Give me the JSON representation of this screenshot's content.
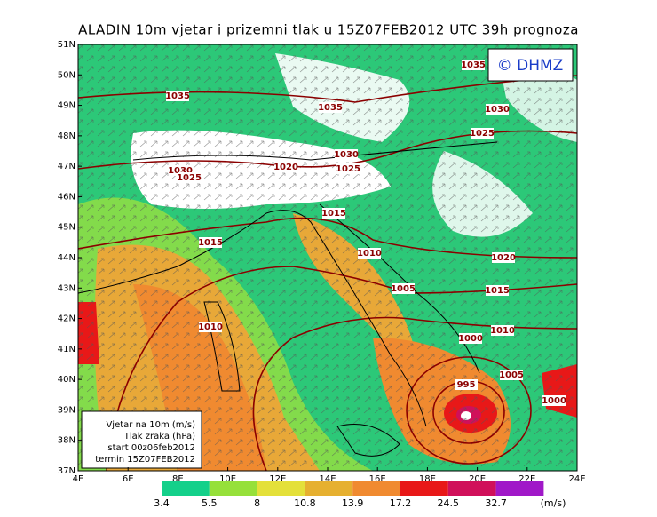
{
  "header": {
    "title": "ALADIN  10m  vjetar  i  prizemni  tlak  u  15Z07FEB2012  UTC  39h  prognoza"
  },
  "logo": "© DHMZ",
  "map": {
    "lat_labels": [
      "51N",
      "50N",
      "49N",
      "48N",
      "47N",
      "46N",
      "45N",
      "44N",
      "43N",
      "42N",
      "41N",
      "40N",
      "39N",
      "38N",
      "37N"
    ],
    "lon_labels": [
      "4E",
      "6E",
      "8E",
      "10E",
      "12E",
      "14E",
      "16E",
      "18E",
      "20E",
      "22E",
      "24E"
    ],
    "isobar_labels": [
      "1035",
      "1035",
      "1035",
      "1030",
      "1025",
      "1030",
      "1020",
      "1025",
      "1030",
      "1025",
      "1015",
      "1015",
      "1010",
      "1020",
      "1005",
      "1015",
      "1010",
      "1000",
      "1010",
      "1005",
      "995",
      "1000"
    ]
  },
  "info_box": {
    "lines": [
      "Vjetar na 10m (m/s)",
      "Tlak zraka (hPa)",
      "start 00z06feb2012",
      "termin 15Z07FEB2012"
    ]
  },
  "colorbar": {
    "labels": [
      "3.4",
      "5.5",
      "8",
      "10.8",
      "13.9",
      "17.2",
      "24.5",
      "32.7"
    ],
    "unit": "(m/s)",
    "colors": [
      "#14d08a",
      "#96e03a",
      "#e4e03a",
      "#e6b030",
      "#f08a30",
      "#e81818",
      "#d0105a",
      "#a018c8"
    ]
  }
}
